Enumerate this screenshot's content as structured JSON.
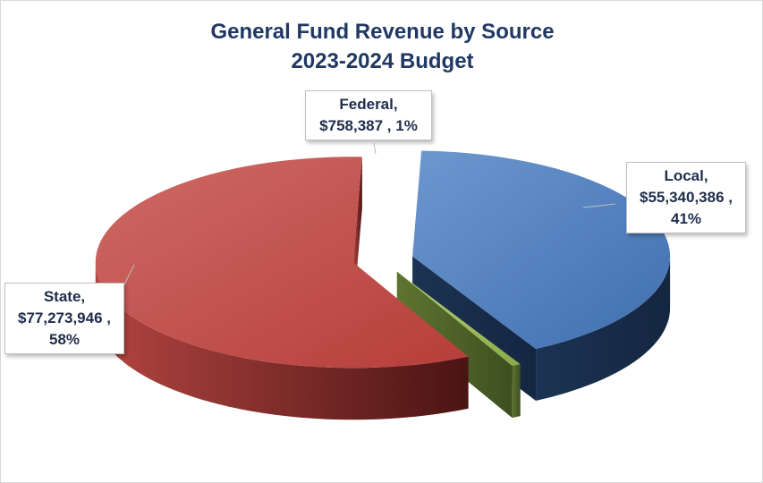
{
  "chart_data": {
    "type": "pie",
    "three_d": true,
    "exploded": true,
    "title": [
      "General Fund Revenue by Source",
      "2023-2024 Budget"
    ],
    "slices": [
      {
        "name": "Local",
        "value": 55340386,
        "percent": 41,
        "color": "#4f81bd",
        "label_lines": [
          "Local,",
          "$55,340,386 ,",
          "41%"
        ]
      },
      {
        "name": "Federal",
        "value": 758387,
        "percent": 1,
        "color": "#9bbb59",
        "label_lines": [
          "Federal,",
          "$758,387 , 1%"
        ]
      },
      {
        "name": "State",
        "value": 77273946,
        "percent": 58,
        "color": "#c0504d",
        "label_lines": [
          "State,",
          "$77,273,946 ,",
          "58%"
        ]
      }
    ],
    "legend": "none",
    "grid": false
  }
}
